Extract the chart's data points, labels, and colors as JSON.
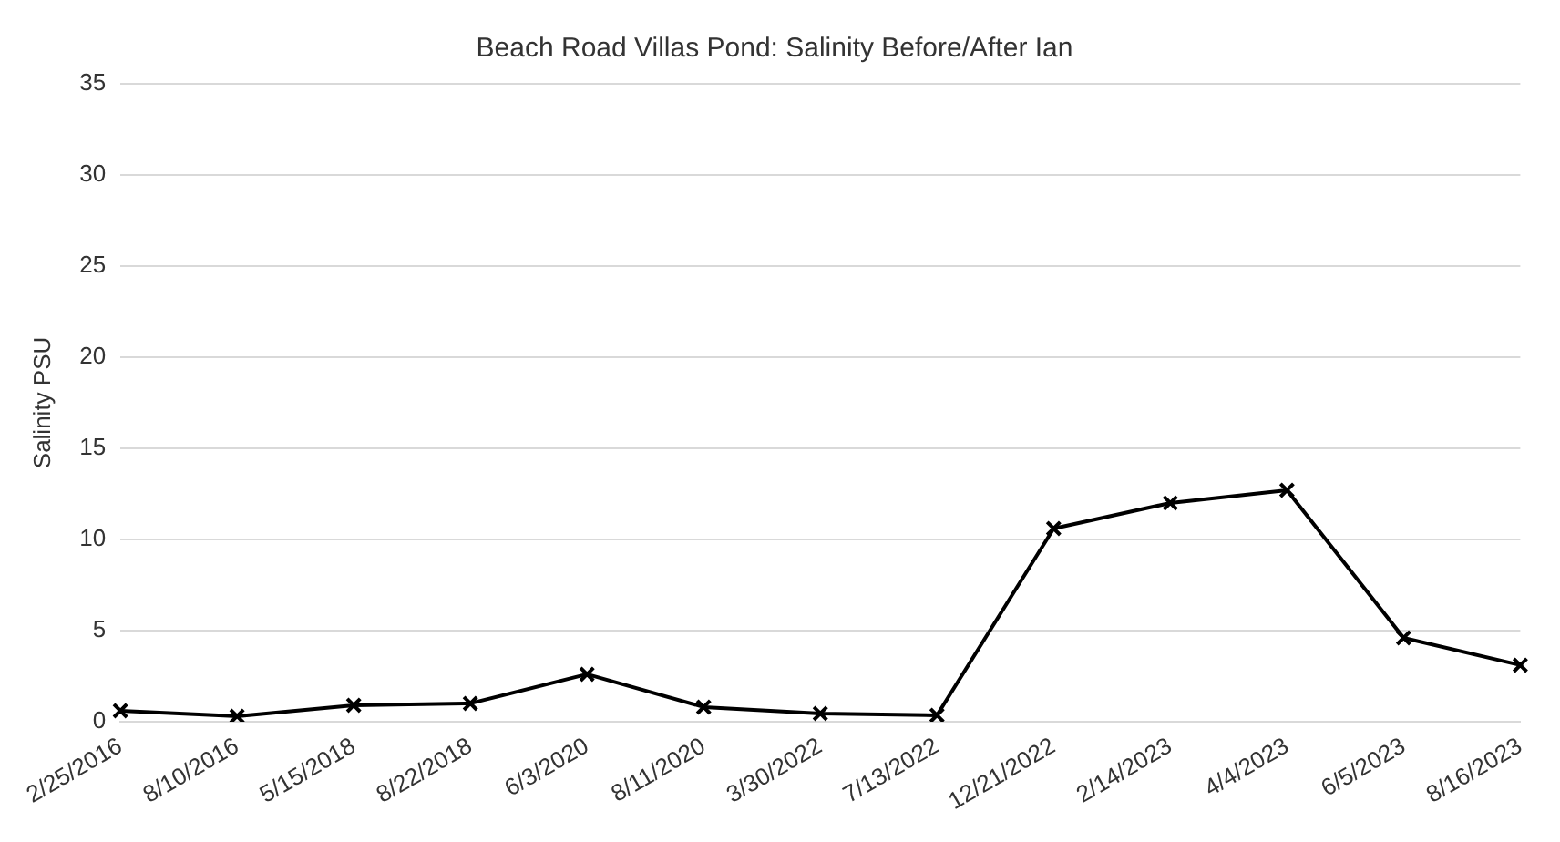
{
  "chart_data": {
    "type": "line",
    "title": "Beach Road Villas Pond: Salinity Before/After Ian",
    "ylabel": "Salinity PSU",
    "categories": [
      "2/25/2016",
      "8/10/2016",
      "5/15/2018",
      "8/22/2018",
      "6/3/2020",
      "8/11/2020",
      "3/30/2022",
      "7/13/2022",
      "12/21/2022",
      "2/14/2023",
      "4/4/2023",
      "6/5/2023",
      "8/16/2023"
    ],
    "series": [
      {
        "color": "#000000",
        "values": [
          0.6,
          0.3,
          0.9,
          1.0,
          2.6,
          0.8,
          0.45,
          0.35,
          10.6,
          12.0,
          12.7,
          4.6,
          3.1
        ]
      }
    ],
    "ylim": [
      0,
      35
    ],
    "yticks": [
      0,
      5,
      10,
      15,
      20,
      25,
      30,
      35
    ],
    "grid": "y",
    "legend": false,
    "marker": "cross",
    "line_style": "solid"
  }
}
